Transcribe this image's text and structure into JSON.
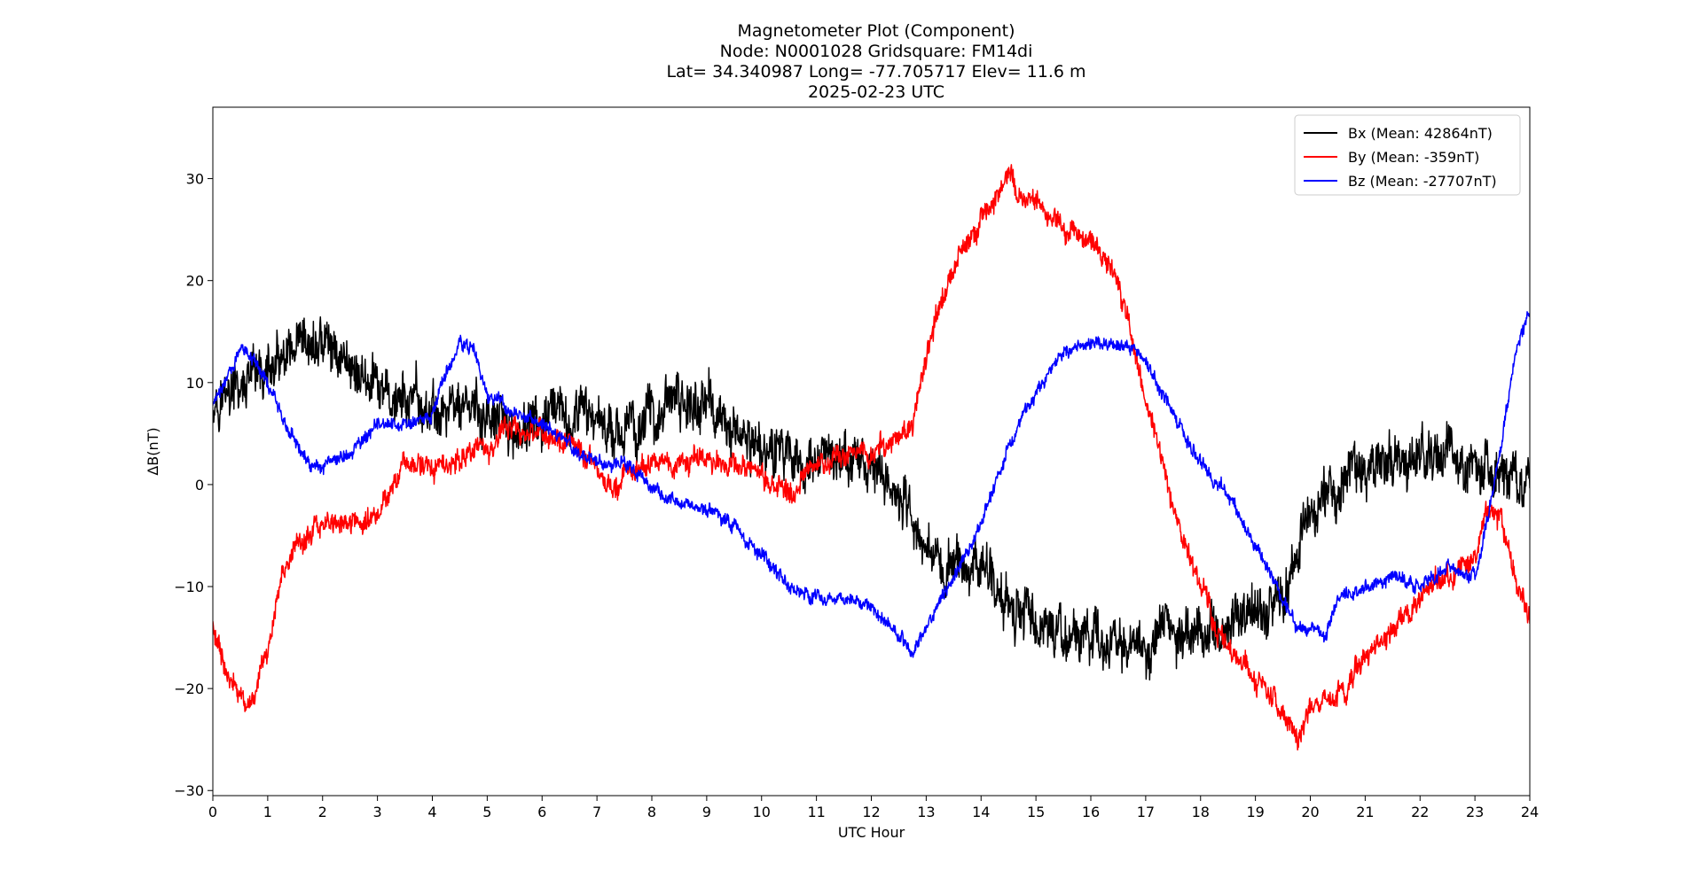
{
  "title_lines": [
    "Magnetometer Plot (Component)",
    "Node:  N0001028     Gridsquare:  FM14di",
    "Lat= 34.340987    Long= -77.705717    Elev= 11.6 m",
    "2025-02-23  UTC"
  ],
  "chart_data": {
    "type": "line",
    "xlabel": "UTC Hour",
    "ylabel": "ΔB(nT)",
    "xlim": [
      0,
      24
    ],
    "ylim": [
      -30.5,
      37
    ],
    "xticks": [
      "0",
      "1",
      "2",
      "3",
      "4",
      "5",
      "6",
      "7",
      "8",
      "9",
      "10",
      "11",
      "12",
      "13",
      "14",
      "15",
      "16",
      "17",
      "18",
      "19",
      "20",
      "21",
      "22",
      "23",
      "24"
    ],
    "yticks": [
      -30,
      -20,
      -10,
      0,
      10,
      20,
      30
    ],
    "legend_position": "top-right",
    "grid": false,
    "series": [
      {
        "name": "Bx (Mean: 42864nT)",
        "color": "#000000",
        "noise": 2.2,
        "x": [
          0,
          0.5,
          1,
          1.5,
          2,
          2.5,
          3,
          3.5,
          4,
          4.5,
          5,
          5.5,
          6,
          6.5,
          7,
          7.5,
          8,
          8.5,
          9,
          9.5,
          10,
          10.5,
          11,
          11.5,
          12,
          12.5,
          13,
          13.5,
          14,
          14.5,
          15,
          15.5,
          16,
          16.5,
          17,
          17.5,
          18,
          18.5,
          19,
          19.5,
          20,
          20.5,
          21,
          21.5,
          22,
          22.5,
          23,
          23.5,
          24
        ],
        "y": [
          9,
          9,
          11,
          12,
          14,
          12,
          9,
          8,
          7,
          8,
          6,
          5,
          6,
          6,
          7,
          5,
          7,
          8,
          8,
          5,
          4,
          3,
          2,
          2,
          2,
          -1,
          -6,
          -8,
          -8,
          -11,
          -14,
          -15,
          -15,
          -15,
          -16,
          -15,
          -14,
          -14,
          -12,
          -12,
          -3,
          0,
          2,
          2,
          3,
          3,
          2,
          0,
          0
        ]
      },
      {
        "name": "By (Mean: -359nT)",
        "color": "#ff0000",
        "noise": 1.0,
        "x": [
          0,
          0.25,
          0.5,
          0.75,
          1,
          1.25,
          1.5,
          2,
          2.5,
          3,
          3.25,
          3.5,
          4,
          4.5,
          5,
          5.5,
          6,
          6.5,
          7,
          7.25,
          7.5,
          8,
          8.5,
          9,
          9.5,
          10,
          10.5,
          11,
          11.5,
          12,
          12.5,
          12.75,
          13,
          13.25,
          13.5,
          14,
          14.25,
          14.5,
          14.75,
          15,
          15.5,
          16,
          16.5,
          16.75,
          17,
          17.25,
          17.5,
          18,
          18.25,
          18.5,
          19,
          19.5,
          19.75,
          20,
          20.5,
          21,
          21.5,
          22,
          22.5,
          23,
          23.25,
          23.5,
          23.75,
          24
        ],
        "y": [
          -14,
          -19,
          -21,
          -21,
          -16,
          -9,
          -6,
          -4,
          -4,
          -3,
          0,
          2,
          2,
          2,
          4,
          5,
          5,
          4,
          2,
          -1,
          1,
          2,
          2,
          3,
          2,
          1,
          -1,
          2,
          3,
          3,
          5,
          6,
          12,
          18,
          21,
          26,
          28,
          31,
          28,
          28,
          25,
          24,
          20,
          15,
          8,
          3,
          -2,
          -10,
          -14,
          -16,
          -19,
          -23,
          -25,
          -22,
          -21,
          -17,
          -14,
          -11,
          -9,
          -7,
          -2,
          -4,
          -9,
          -13
        ]
      },
      {
        "name": "Bz (Mean: -27707nT)",
        "color": "#0000ff",
        "noise": 0.6,
        "x": [
          0,
          0.25,
          0.5,
          0.75,
          1,
          1.25,
          1.5,
          1.75,
          2,
          2.5,
          3,
          3.5,
          4,
          4.25,
          4.5,
          4.75,
          5,
          5.5,
          6,
          6.5,
          7,
          7.5,
          8,
          8.5,
          9,
          9.5,
          10,
          10.5,
          11,
          11.5,
          12,
          12.5,
          12.75,
          13,
          13.5,
          14,
          14.5,
          15,
          15.5,
          16,
          16.5,
          17,
          17.5,
          18,
          18.5,
          19,
          19.5,
          19.75,
          20,
          20.25,
          20.5,
          21,
          21.5,
          22,
          22.5,
          23,
          23.25,
          23.5,
          23.75,
          24
        ],
        "y": [
          8,
          10,
          14,
          12,
          10,
          7,
          4,
          2,
          2,
          3,
          6,
          6,
          7,
          11,
          14,
          13,
          9,
          7,
          6,
          4,
          2,
          2,
          0,
          -2,
          -2,
          -4,
          -7,
          -10,
          -11,
          -11,
          -12,
          -15,
          -16,
          -14,
          -9,
          -4,
          4,
          9,
          13,
          14,
          14,
          12,
          7,
          2,
          -1,
          -6,
          -11,
          -14,
          -14,
          -15,
          -11,
          -10,
          -9,
          -10,
          -8,
          -9,
          -3,
          5,
          13,
          17
        ]
      }
    ]
  }
}
